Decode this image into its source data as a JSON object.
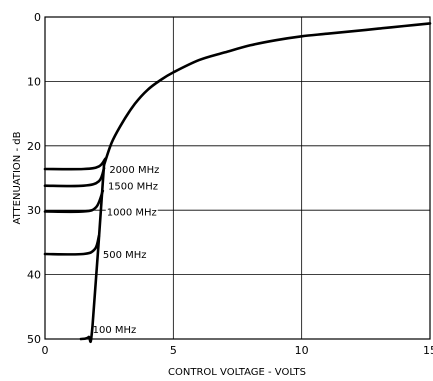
{
  "chart_data": {
    "type": "line",
    "title": "",
    "xlabel": "CONTROL VOLTAGE - VOLTS",
    "ylabel": "ATTENUATION - dB",
    "xlim": [
      0,
      15
    ],
    "ylim": [
      0,
      50
    ],
    "y_inverted": true,
    "grid": true,
    "legend": "none",
    "x_ticks": [
      "0",
      "5",
      "10",
      "15"
    ],
    "y_ticks": [
      "0",
      "10",
      "20",
      "30",
      "40",
      "50"
    ],
    "line_color": "#000000",
    "main_curve": {
      "x": [
        2.3,
        2.6,
        3.0,
        3.5,
        4.0,
        4.5,
        5.0,
        6.0,
        7.0,
        8.0,
        9.0,
        10.0,
        11.0,
        12.0,
        13.0,
        14.0,
        15.0
      ],
      "y": [
        23.0,
        19.5,
        16.5,
        13.5,
        11.3,
        9.8,
        8.6,
        6.7,
        5.5,
        4.4,
        3.6,
        3.0,
        2.6,
        2.2,
        1.8,
        1.4,
        1.0
      ]
    },
    "series": [
      {
        "name": "2000 MHz",
        "x": [
          0,
          1.5,
          2.1,
          2.35
        ],
        "y": [
          23.6,
          23.6,
          23.2,
          22.0
        ]
      },
      {
        "name": "1500 MHz",
        "x": [
          0,
          1.5,
          2.1,
          2.3
        ],
        "y": [
          26.2,
          26.2,
          25.5,
          23.5
        ]
      },
      {
        "name": "1000 MHz",
        "x": [
          0,
          1.5,
          2.0,
          2.25
        ],
        "y": [
          30.2,
          30.2,
          29.5,
          27.0
        ]
      },
      {
        "name": "500 MHz",
        "x": [
          0,
          1.5,
          1.95,
          2.1
        ],
        "y": [
          36.8,
          36.8,
          36.0,
          34.0
        ]
      },
      {
        "name": "100 MHz",
        "x": [
          1.4,
          1.7,
          1.85,
          2.3
        ],
        "y": [
          50.0,
          49.7,
          48.0,
          23.0
        ]
      }
    ]
  }
}
